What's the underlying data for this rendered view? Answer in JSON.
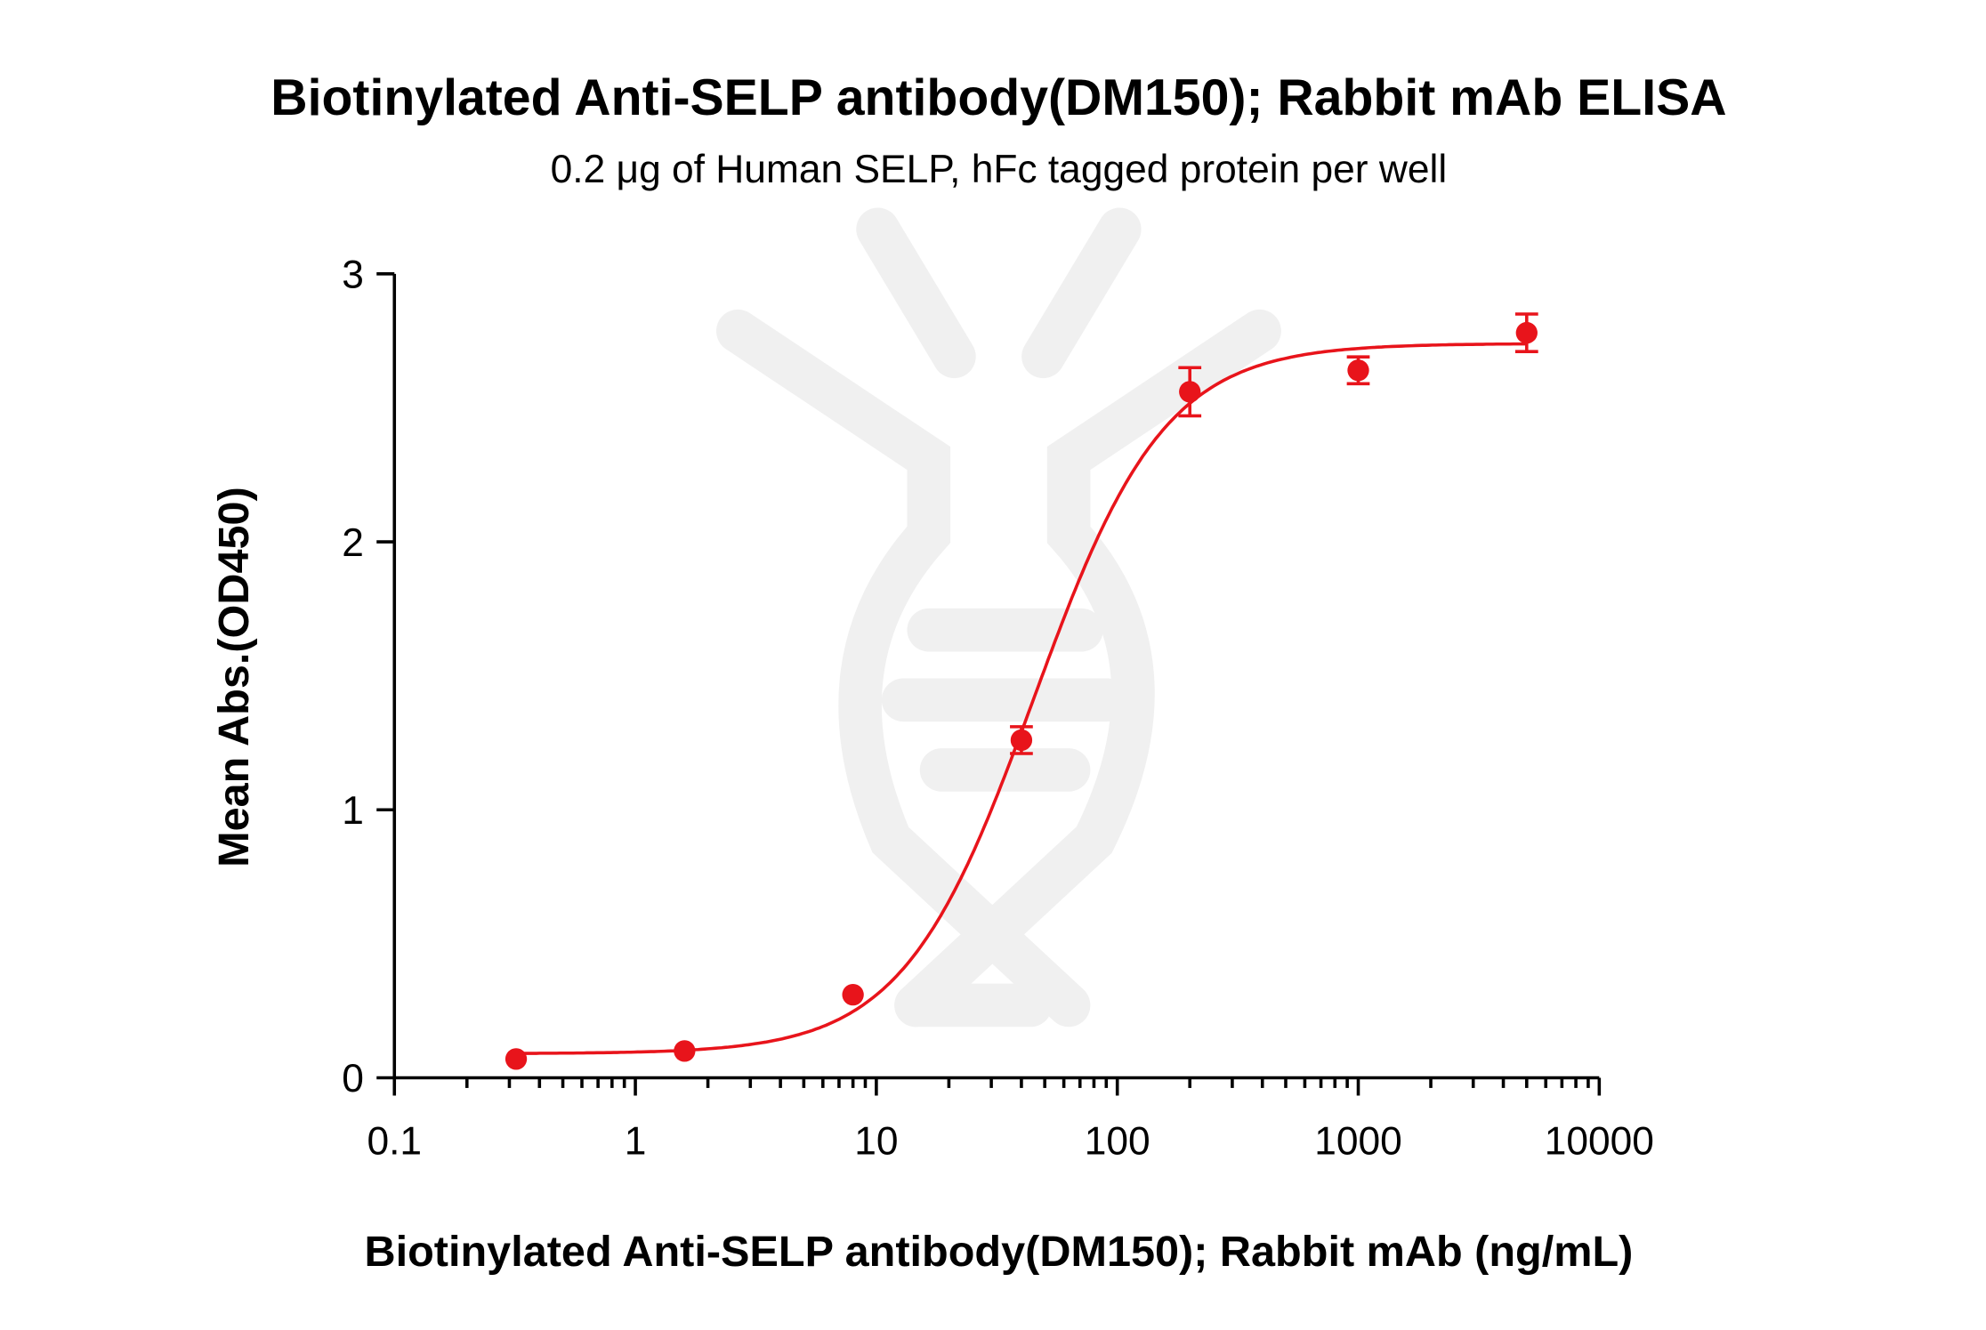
{
  "chart_data": {
    "type": "scatter",
    "title": "Biotinylated Anti-SELP antibody(DM150); Rabbit mAb ELISA",
    "subtitle": "0.2 μg of Human SELP, hFc tagged protein per well",
    "xlabel": "Biotinylated Anti-SELP antibody(DM150); Rabbit mAb (ng/mL)",
    "ylabel": "Mean Abs.(OD450)",
    "xscale": "log",
    "xlim": [
      0.1,
      10000
    ],
    "ylim": [
      0,
      3
    ],
    "xticks": [
      "0.1",
      "1",
      "10",
      "100",
      "1000",
      "10000"
    ],
    "yticks": [
      "0",
      "1",
      "2",
      "3"
    ],
    "grid": false,
    "series": [
      {
        "name": "ELISA",
        "color": "#e8141b",
        "x": [
          0.32,
          1.6,
          8,
          40,
          200,
          1000,
          5000
        ],
        "y": [
          0.07,
          0.1,
          0.31,
          1.26,
          2.56,
          2.64,
          2.78
        ],
        "error": [
          0.01,
          0.01,
          0.02,
          0.05,
          0.09,
          0.05,
          0.07
        ]
      }
    ],
    "fit": {
      "model": "4PL",
      "bottom": 0.09,
      "top": 2.74,
      "ec50": 45,
      "hill": 1.6
    }
  }
}
